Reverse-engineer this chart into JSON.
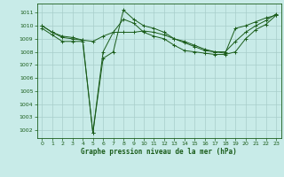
{
  "title": "Graphe pression niveau de la mer (hPa)",
  "bg_color": "#c8ebe8",
  "line_color": "#1a5c1a",
  "grid_color": "#a8ceca",
  "ylim": [
    1001.4,
    1011.7
  ],
  "yticks": [
    1002,
    1003,
    1004,
    1005,
    1006,
    1007,
    1008,
    1009,
    1010,
    1011
  ],
  "xlim": [
    -0.5,
    23.5
  ],
  "xticks": [
    0,
    1,
    2,
    3,
    4,
    5,
    6,
    7,
    8,
    9,
    10,
    11,
    12,
    13,
    14,
    15,
    16,
    17,
    18,
    19,
    20,
    21,
    22,
    23
  ],
  "series": [
    [
      1010.0,
      1009.5,
      1009.1,
      1009.0,
      1008.9,
      1008.8,
      1009.2,
      1009.5,
      1009.5,
      1009.5,
      1009.6,
      1009.5,
      1009.3,
      1009.0,
      1008.7,
      1008.4,
      1008.1,
      1008.0,
      1007.9,
      1009.8,
      1010.0,
      1010.3,
      1010.6,
      1010.8
    ],
    [
      1010.0,
      1009.5,
      1009.2,
      1009.1,
      1008.9,
      1001.8,
      1007.5,
      1008.0,
      1011.2,
      1010.5,
      1010.0,
      1009.8,
      1009.5,
      1009.0,
      1008.8,
      1008.5,
      1008.2,
      1008.0,
      1008.0,
      1008.8,
      1009.5,
      1010.0,
      1010.4,
      1010.9
    ],
    [
      1009.8,
      1009.3,
      1008.8,
      1008.8,
      1008.8,
      1001.8,
      1008.0,
      1009.5,
      1010.5,
      1010.2,
      1009.5,
      1009.2,
      1009.0,
      1008.5,
      1008.1,
      1008.0,
      1007.9,
      1007.8,
      1007.8,
      1008.0,
      1009.0,
      1009.7,
      1010.1,
      1010.8
    ]
  ]
}
